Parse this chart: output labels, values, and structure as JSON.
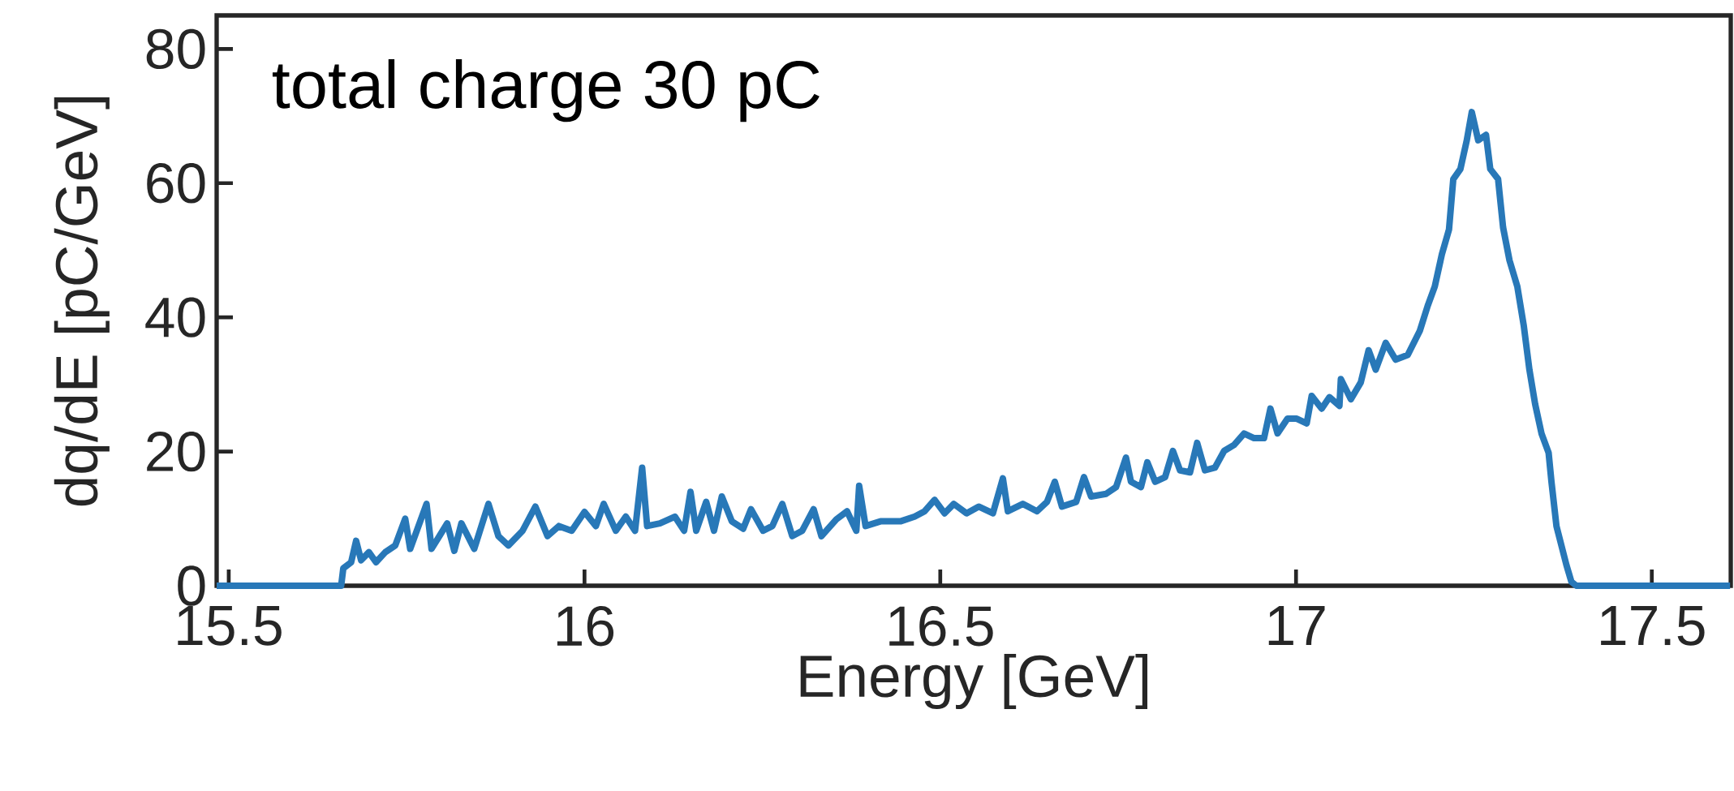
{
  "chart_data": {
    "type": "line",
    "xlabel": "Energy [GeV]",
    "ylabel": "dq/dE [pC/GeV]",
    "annotations": [
      "total charge 30 pC"
    ],
    "xlim": [
      15.483,
      17.611
    ],
    "ylim": [
      0,
      85
    ],
    "xticks": [
      15.5,
      16,
      16.5,
      17,
      17.5
    ],
    "yticks": [
      0,
      20,
      40,
      60,
      80
    ],
    "series": [
      {
        "color": "#2878b8",
        "x": [
          15.483,
          15.658,
          15.661,
          15.672,
          15.679,
          15.686,
          15.697,
          15.707,
          15.72,
          15.734,
          15.748,
          15.755,
          15.778,
          15.785,
          15.796,
          15.807,
          15.817,
          15.827,
          15.845,
          15.865,
          15.879,
          15.893,
          15.913,
          15.931,
          15.948,
          15.964,
          15.982,
          16.0,
          16.016,
          16.027,
          16.044,
          16.058,
          16.071,
          16.081,
          16.088,
          16.106,
          16.127,
          16.14,
          16.149,
          16.157,
          16.171,
          16.182,
          16.193,
          16.207,
          16.223,
          16.234,
          16.251,
          16.264,
          16.278,
          16.292,
          16.306,
          16.322,
          16.333,
          16.354,
          16.369,
          16.382,
          16.386,
          16.395,
          16.416,
          16.444,
          16.464,
          16.478,
          16.492,
          16.506,
          16.519,
          16.537,
          16.554,
          16.574,
          16.588,
          16.595,
          16.616,
          16.636,
          16.65,
          16.661,
          16.671,
          16.691,
          16.702,
          16.712,
          16.733,
          16.747,
          16.761,
          16.768,
          16.782,
          16.791,
          16.802,
          16.816,
          16.827,
          16.837,
          16.851,
          16.861,
          16.872,
          16.886,
          16.899,
          16.913,
          16.927,
          16.941,
          16.955,
          16.964,
          16.974,
          16.988,
          17.001,
          17.015,
          17.022,
          17.036,
          17.047,
          17.061,
          17.063,
          17.077,
          17.091,
          17.102,
          17.112,
          17.126,
          17.14,
          17.157,
          17.174,
          17.185,
          17.195,
          17.205,
          17.215,
          17.221,
          17.231,
          17.24,
          17.247,
          17.256,
          17.267,
          17.273,
          17.284,
          17.291,
          17.3,
          17.311,
          17.32,
          17.328,
          17.336,
          17.345,
          17.355,
          17.359,
          17.366,
          17.373,
          17.38,
          17.387,
          17.394,
          17.61
        ],
        "values": [
          0,
          0,
          2.6,
          3.5,
          6.7,
          3.8,
          5,
          3.5,
          5,
          6,
          10,
          5.5,
          12.2,
          5.5,
          7.4,
          9.3,
          5.2,
          9.3,
          5.5,
          12.2,
          7.4,
          6,
          8.2,
          11.8,
          7.4,
          8.9,
          8.2,
          11,
          8.9,
          12.2,
          8.2,
          10.3,
          8.2,
          17.6,
          8.9,
          9.3,
          10.3,
          8.2,
          14,
          8.2,
          12.5,
          8.2,
          13.3,
          9.6,
          8.5,
          11.4,
          8.2,
          8.9,
          12.2,
          7.4,
          8.2,
          11.4,
          7.4,
          9.9,
          11.1,
          8.2,
          14.9,
          8.9,
          9.6,
          9.6,
          10.3,
          11.1,
          12.8,
          10.8,
          12.2,
          10.8,
          11.8,
          10.8,
          16,
          11.1,
          12.2,
          11.1,
          12.5,
          15.5,
          11.8,
          12.5,
          16.2,
          13.3,
          13.7,
          14.7,
          19.1,
          15.5,
          14.7,
          18.4,
          15.5,
          16.2,
          20.1,
          17.2,
          16.9,
          21.3,
          17.2,
          17.6,
          20.1,
          21,
          22.7,
          22,
          22,
          26.4,
          22.7,
          24.9,
          24.9,
          24.2,
          28.3,
          26.4,
          28.1,
          26.8,
          30.8,
          27.8,
          30.3,
          35.1,
          32.2,
          36.2,
          33.7,
          34.4,
          38,
          41.7,
          44.6,
          49.4,
          53.1,
          60.6,
          62.1,
          66.4,
          70.6,
          66.4,
          67.2,
          62.1,
          60.6,
          53.4,
          48.5,
          44.6,
          38.8,
          32.2,
          27.1,
          22.7,
          19.8,
          15.5,
          8.9,
          6,
          3.1,
          0.6,
          0,
          0
        ]
      }
    ]
  }
}
